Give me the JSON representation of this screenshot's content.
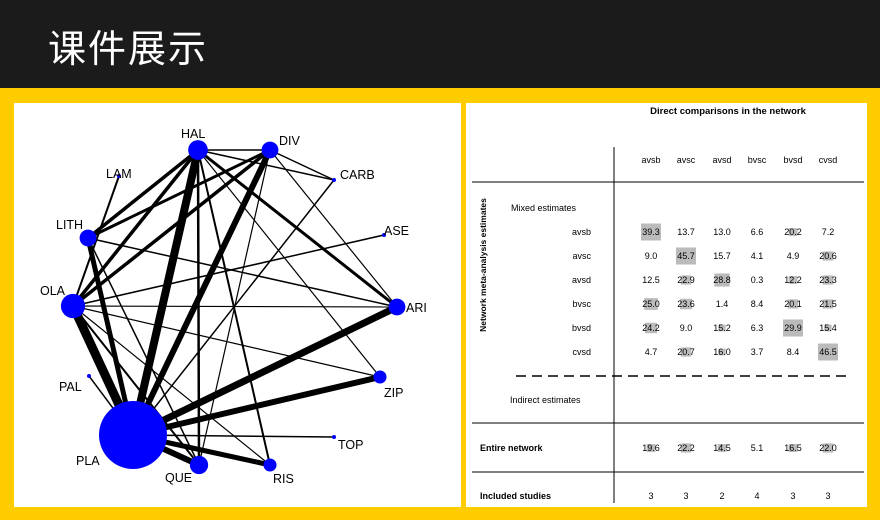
{
  "slide": {
    "title": "课件展示"
  },
  "network": {
    "node_color": "#0000ff",
    "nodes": [
      {
        "id": "HAL",
        "label": "HAL",
        "weight": 0.06
      },
      {
        "id": "DIV",
        "label": "DIV",
        "weight": 0.04
      },
      {
        "id": "CARB",
        "label": "CARB",
        "weight": 0.0
      },
      {
        "id": "LAM",
        "label": "LAM",
        "weight": 0.0
      },
      {
        "id": "ASE",
        "label": "ASE",
        "weight": 0.0
      },
      {
        "id": "LITH",
        "label": "LITH",
        "weight": 0.04
      },
      {
        "id": "ARI",
        "label": "ARI",
        "weight": 0.04
      },
      {
        "id": "OLA",
        "label": "OLA",
        "weight": 0.1
      },
      {
        "id": "PAL",
        "label": "PAL",
        "weight": 0.0
      },
      {
        "id": "ZIP",
        "label": "ZIP",
        "weight": 0.02
      },
      {
        "id": "TOP",
        "label": "TOP",
        "weight": 0.0
      },
      {
        "id": "PLA",
        "label": "PLA",
        "weight": 1.0
      },
      {
        "id": "QUE",
        "label": "QUE",
        "weight": 0.05
      },
      {
        "id": "RIS",
        "label": "RIS",
        "weight": 0.02
      }
    ],
    "edges": [
      {
        "a": "PLA",
        "b": "HAL",
        "w": 8
      },
      {
        "a": "PLA",
        "b": "DIV",
        "w": 6
      },
      {
        "a": "PLA",
        "b": "ARI",
        "w": 7
      },
      {
        "a": "PLA",
        "b": "ZIP",
        "w": 6
      },
      {
        "a": "PLA",
        "b": "OLA",
        "w": 9
      },
      {
        "a": "PLA",
        "b": "LITH",
        "w": 5
      },
      {
        "a": "PLA",
        "b": "QUE",
        "w": 6
      },
      {
        "a": "PLA",
        "b": "RIS",
        "w": 5
      },
      {
        "a": "PLA",
        "b": "TOP",
        "w": 1.5
      },
      {
        "a": "PLA",
        "b": "PAL",
        "w": 1.5
      },
      {
        "a": "PLA",
        "b": "CARB",
        "w": 1.5
      },
      {
        "a": "HAL",
        "b": "OLA",
        "w": 3.5
      },
      {
        "a": "HAL",
        "b": "LITH",
        "w": 3.5
      },
      {
        "a": "HAL",
        "b": "ARI",
        "w": 3
      },
      {
        "a": "HAL",
        "b": "QUE",
        "w": 2.5
      },
      {
        "a": "HAL",
        "b": "RIS",
        "w": 2
      },
      {
        "a": "HAL",
        "b": "CARB",
        "w": 1.5
      },
      {
        "a": "HAL",
        "b": "DIV",
        "w": 1.5
      },
      {
        "a": "HAL",
        "b": "ZIP",
        "w": 1.2
      },
      {
        "a": "DIV",
        "b": "OLA",
        "w": 3.5
      },
      {
        "a": "DIV",
        "b": "LITH",
        "w": 3
      },
      {
        "a": "DIV",
        "b": "CARB",
        "w": 1.5
      },
      {
        "a": "DIV",
        "b": "ARI",
        "w": 1.2
      },
      {
        "a": "DIV",
        "b": "QUE",
        "w": 1.2
      },
      {
        "a": "LITH",
        "b": "ARI",
        "w": 1.5
      },
      {
        "a": "LITH",
        "b": "QUE",
        "w": 1.5
      },
      {
        "a": "OLA",
        "b": "LAM",
        "w": 2
      },
      {
        "a": "OLA",
        "b": "ASE",
        "w": 1.5
      },
      {
        "a": "OLA",
        "b": "QUE",
        "w": 2
      },
      {
        "a": "OLA",
        "b": "ARI",
        "w": 1.2
      },
      {
        "a": "OLA",
        "b": "ZIP",
        "w": 1.2
      },
      {
        "a": "OLA",
        "b": "RIS",
        "w": 1.2
      }
    ]
  },
  "matrix": {
    "title": "Direct comparisons in the network",
    "columns": [
      "avsb",
      "avsc",
      "avsd",
      "bvsc",
      "bvsd",
      "cvsd"
    ],
    "side_label": "Network meta-analysis estimates",
    "mixed_label": "Mixed estimates",
    "indirect_label": "Indirect estimates",
    "highlight_color": "#bbbbbb",
    "rows": [
      {
        "label": "avsb",
        "cells": [
          "39.3",
          "13.7",
          "13.0",
          "6.6",
          "20.2",
          "7.2"
        ],
        "shade": [
          1,
          0,
          0,
          0,
          0.3,
          0
        ]
      },
      {
        "label": "avsc",
        "cells": [
          "9.0",
          "45.7",
          "15.7",
          "4.1",
          "4.9",
          "20.6"
        ],
        "shade": [
          0,
          1,
          0,
          0,
          0,
          0.4
        ]
      },
      {
        "label": "avsd",
        "cells": [
          "12.5",
          "22.9",
          "28.8",
          "0.3",
          "12.2",
          "23.3"
        ],
        "shade": [
          0,
          0.4,
          0.7,
          0,
          0.3,
          0.4
        ]
      },
      {
        "label": "bvsc",
        "cells": [
          "25.0",
          "23.6",
          "1.4",
          "8.4",
          "20.1",
          "21.5"
        ],
        "shade": [
          0.6,
          0.5,
          0,
          0,
          0.4,
          0.4
        ]
      },
      {
        "label": "bvsd",
        "cells": [
          "24.2",
          "9.0",
          "15.2",
          "6.3",
          "29.9",
          "15.4"
        ],
        "shade": [
          0.5,
          0,
          0.2,
          0,
          1,
          0.2
        ]
      },
      {
        "label": "cvsd",
        "cells": [
          "4.7",
          "20.7",
          "16.0",
          "3.7",
          "8.4",
          "46.5"
        ],
        "shade": [
          0,
          0.4,
          0.2,
          0,
          0,
          1
        ]
      }
    ],
    "entire": {
      "label": "Entire network",
      "cells": [
        "19.6",
        "22.2",
        "14.5",
        "5.1",
        "16.5",
        "22.0"
      ],
      "shade": [
        0.3,
        0.4,
        0.3,
        0,
        0.3,
        0.4
      ]
    },
    "studies": {
      "label": "Included studies",
      "cells": [
        "3",
        "3",
        "2",
        "4",
        "3",
        "3"
      ]
    }
  }
}
